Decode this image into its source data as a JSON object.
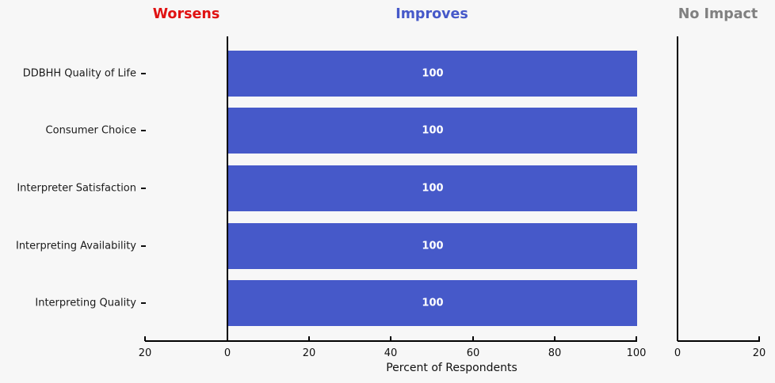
{
  "page": {
    "background": "#f7f7f7",
    "axis_color": "#000000",
    "text_color": "#1a1a1a"
  },
  "panels": {
    "worsens": {
      "title": "Worsens",
      "title_color": "#e01212",
      "bar_color": "#e01212",
      "tick_labels": [
        "20",
        "0"
      ],
      "axis_range": [
        20,
        0
      ]
    },
    "improves": {
      "title": "Improves",
      "title_color": "#4659c9",
      "bar_color": "#4659c9",
      "tick_labels": [
        "0",
        "20",
        "40",
        "60",
        "80",
        "100"
      ],
      "axis_range": [
        0,
        100
      ]
    },
    "no_impact": {
      "title": "No Impact",
      "title_color": "#808080",
      "bar_color": "#7f7f7f",
      "tick_labels": [
        "0",
        "20"
      ],
      "axis_range": [
        0,
        20
      ]
    }
  },
  "chart_data": {
    "type": "bar",
    "orientation": "horizontal",
    "title": "",
    "categories": [
      "DDBHH Quality of Life",
      "Consumer Choice",
      "Interpreter Satisfaction",
      "Interpreting Availability",
      "Interpreting Quality"
    ],
    "series": [
      {
        "name": "Worsens",
        "values": [
          0,
          0,
          0,
          0,
          0
        ]
      },
      {
        "name": "Improves",
        "values": [
          100,
          100,
          100,
          100,
          100
        ]
      },
      {
        "name": "No Impact",
        "values": [
          0,
          0,
          0,
          0,
          0
        ]
      }
    ],
    "bar_value_labels": [
      "100",
      "100",
      "100",
      "100",
      "100"
    ],
    "xlabel": "Percent of Respondents",
    "legend": false,
    "grid": false
  }
}
